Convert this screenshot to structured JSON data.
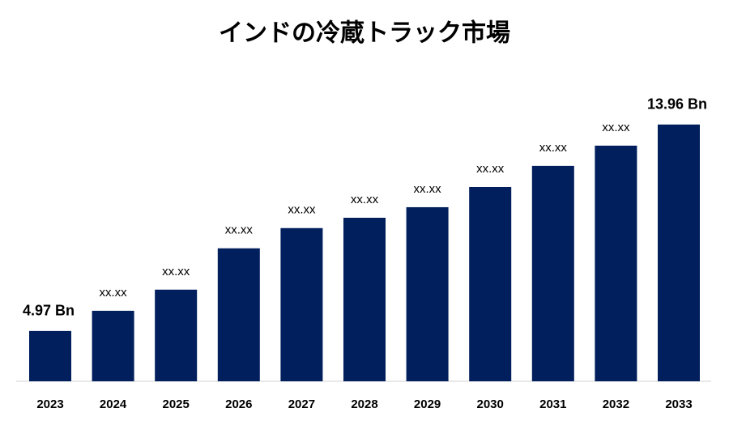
{
  "chart_data": {
    "type": "bar",
    "title": "インドの冷蔵トラック市場",
    "categories": [
      "2023",
      "2024",
      "2025",
      "2026",
      "2027",
      "2028",
      "2029",
      "2030",
      "2031",
      "2032",
      "2033"
    ],
    "values": [
      4.97,
      5.85,
      6.77,
      8.57,
      9.45,
      9.9,
      10.36,
      11.24,
      12.16,
      13.04,
      13.96
    ],
    "value_labels": [
      "4.97 Bn",
      "xx.xx",
      "xx.xx",
      "xx.xx",
      "xx.xx",
      "xx.xx",
      "xx.xx",
      "xx.xx",
      "xx.xx",
      "xx.xx",
      "13.96 Bn"
    ],
    "color": "#001f5c",
    "ylim": [
      2.78,
      14.5
    ]
  }
}
